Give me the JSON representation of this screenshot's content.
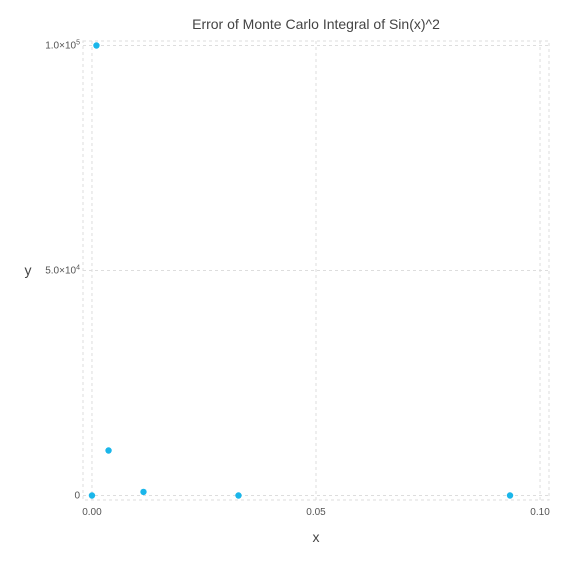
{
  "chart_data": {
    "type": "scatter",
    "title": "Error of Monte Carlo Integral of Sin(x)^2",
    "xlabel": "x",
    "ylabel": "y",
    "xlim": [
      -0.002,
      0.102
    ],
    "ylim": [
      -1000,
      101000
    ],
    "grid": true,
    "x_ticks": [
      {
        "value": 0.0,
        "label": "0.00"
      },
      {
        "value": 0.05,
        "label": "0.05"
      },
      {
        "value": 0.1,
        "label": "0.10"
      }
    ],
    "y_ticks": [
      {
        "value": 0,
        "label": "0",
        "exp": ""
      },
      {
        "value": 50000,
        "label": "5.0×10",
        "exp": "4"
      },
      {
        "value": 100000,
        "label": "1.0×10",
        "exp": "5"
      }
    ],
    "marker_color": "#1ab6ea",
    "points": [
      {
        "x": 0.0,
        "y": 0
      },
      {
        "x": 0.001,
        "y": 100000
      },
      {
        "x": 0.0037,
        "y": 10000
      },
      {
        "x": 0.0115,
        "y": 800
      },
      {
        "x": 0.0327,
        "y": 0
      },
      {
        "x": 0.0933,
        "y": 0
      }
    ]
  }
}
